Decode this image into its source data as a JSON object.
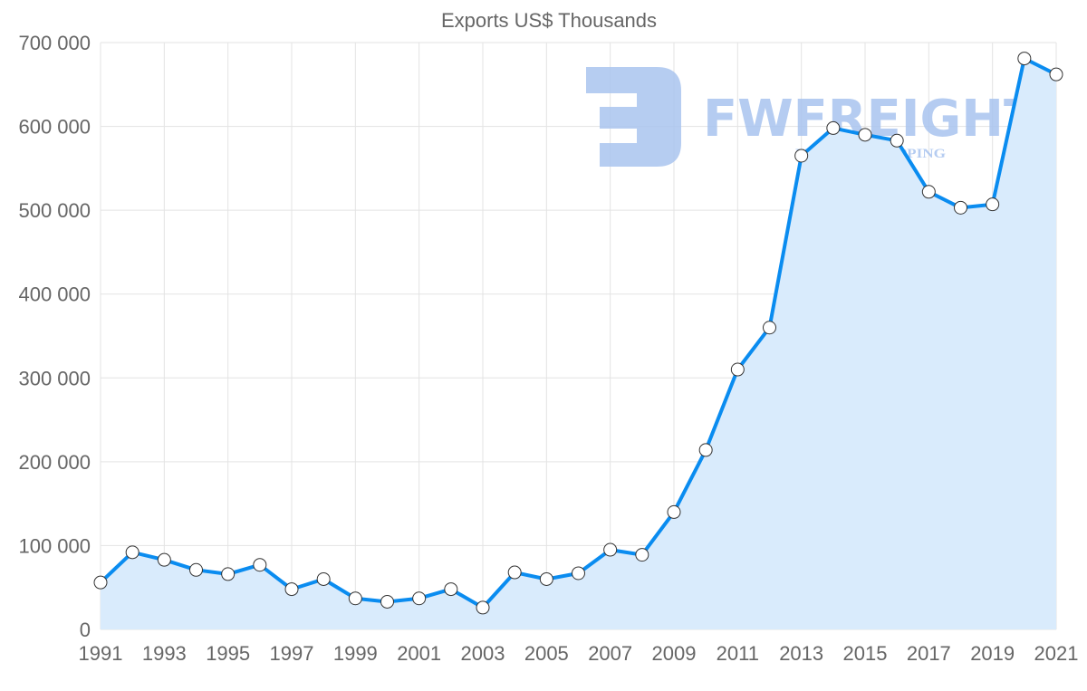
{
  "chart_data": {
    "type": "area",
    "title": "Exports US$ Thousands",
    "xlabel": "",
    "ylabel": "",
    "ylim": [
      0,
      700000
    ],
    "y_ticks": [
      "0",
      "100 000",
      "200 000",
      "300 000",
      "400 000",
      "500 000",
      "600 000",
      "700 000"
    ],
    "x_ticks": [
      "1991",
      "1993",
      "1995",
      "1997",
      "1999",
      "2001",
      "2003",
      "2005",
      "2007",
      "2009",
      "2011",
      "2013",
      "2015",
      "2017",
      "2019",
      "2021"
    ],
    "x": [
      1991,
      1992,
      1993,
      1994,
      1995,
      1996,
      1997,
      1998,
      1999,
      2000,
      2001,
      2002,
      2003,
      2004,
      2005,
      2006,
      2007,
      2008,
      2009,
      2010,
      2011,
      2012,
      2013,
      2014,
      2015,
      2016,
      2017,
      2018,
      2019,
      2020,
      2021
    ],
    "series": [
      {
        "name": "Exports US$ Thousands",
        "values": [
          56000,
          92000,
          83000,
          71000,
          66000,
          77000,
          48000,
          60000,
          37000,
          33000,
          37000,
          48000,
          26000,
          68000,
          60000,
          67000,
          95000,
          89000,
          140000,
          214000,
          310000,
          360000,
          565000,
          598000,
          590000,
          583000,
          522000,
          503000,
          507000,
          681000,
          662000
        ]
      }
    ],
    "grid": true,
    "legend": "none",
    "colors": {
      "line": "#0a8cf0",
      "fill": "#d9ebfc",
      "point_fill": "#ffffff",
      "point_stroke": "#333333"
    }
  },
  "watermark": {
    "brand": "FWFREIGHT",
    "tagline": "FREIGHT SHIPPING",
    "color": "#a9c4ef"
  }
}
